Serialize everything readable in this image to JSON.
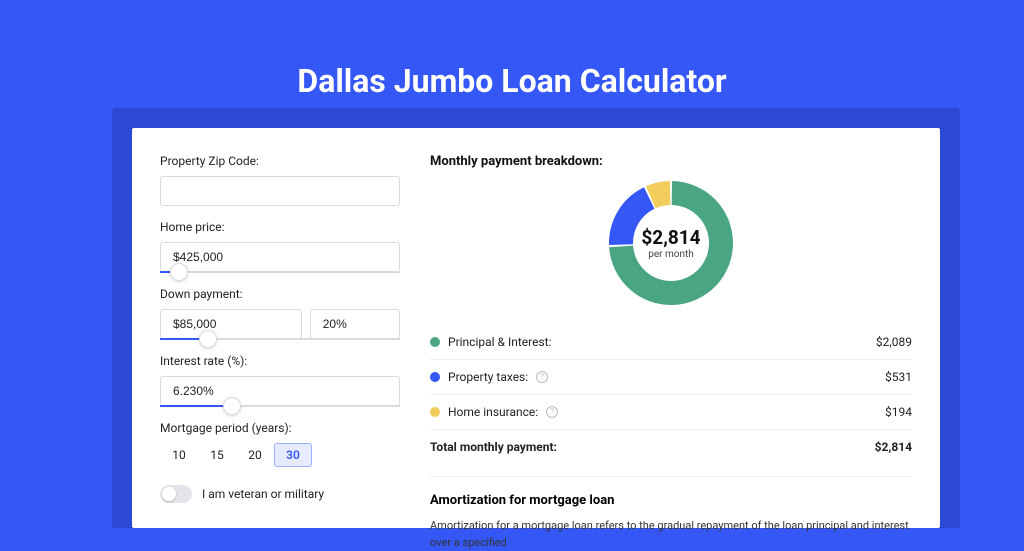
{
  "colors": {
    "page_bg": "#3457f5",
    "card_shadow": "#2b49d4",
    "card_bg": "#ffffff",
    "input_border": "#d9dbe0",
    "slider_fill": "#3457f5",
    "divider": "#eceef2",
    "period_selected_bg": "#e6ebff",
    "period_selected_border": "#9db0ff"
  },
  "title": "Dallas Jumbo Loan Calculator",
  "form": {
    "zip": {
      "label": "Property Zip Code:",
      "value": ""
    },
    "home_price": {
      "label": "Home price:",
      "value": "$425,000",
      "slider_pct": 8
    },
    "down_payment": {
      "label": "Down payment:",
      "amount": "$85,000",
      "percent": "20%",
      "slider_pct": 20
    },
    "interest": {
      "label": "Interest rate (%):",
      "value": "6.230%",
      "slider_pct": 30
    },
    "period": {
      "label": "Mortgage period (years):",
      "options": [
        "10",
        "15",
        "20",
        "30"
      ],
      "selected_index": 3
    },
    "veteran": {
      "label": "I am veteran or military",
      "checked": false
    }
  },
  "breakdown": {
    "title": "Monthly payment breakdown:",
    "center_amount": "$2,814",
    "center_sub": "per month",
    "donut": {
      "type": "donut",
      "inner_radius": 38,
      "outer_radius": 62,
      "gap_deg": 2,
      "slices": [
        {
          "label": "Principal & Interest:",
          "value": "$2,089",
          "color": "#4aa582",
          "pct": 74.2
        },
        {
          "label": "Property taxes:",
          "value": "$531",
          "color": "#3457f5",
          "pct": 18.9,
          "info": true
        },
        {
          "label": "Home insurance:",
          "value": "$194",
          "color": "#f2cd5c",
          "pct": 6.9,
          "info": true
        }
      ]
    },
    "total": {
      "label": "Total monthly payment:",
      "value": "$2,814"
    }
  },
  "amortization": {
    "title": "Amortization for mortgage loan",
    "text": "Amortization for a mortgage loan refers to the gradual repayment of the loan principal and interest over a specified"
  }
}
